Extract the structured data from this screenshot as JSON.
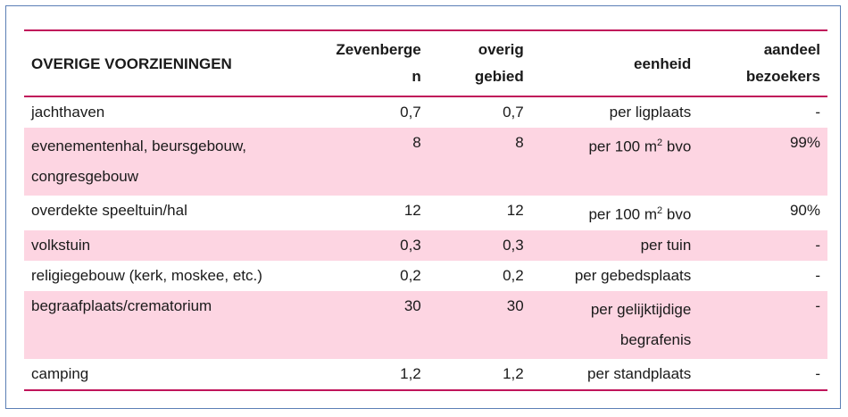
{
  "table": {
    "headers": {
      "col1": "OVERIGE VOORZIENINGEN",
      "col2_line1": "Zevenberge",
      "col2_line2": "n",
      "col3_line1": "overig",
      "col3_line2": "gebied",
      "col4": "eenheid",
      "col5_line1": "aandeel",
      "col5_line2": "bezoekers"
    },
    "rows": [
      {
        "name": "jachthaven",
        "name2": "",
        "zev": "0,7",
        "overig": "0,7",
        "unit": "per ligplaats",
        "unit_sup": "",
        "unit_after": "",
        "unit2": "",
        "share": "-",
        "pink": false
      },
      {
        "name": "evenementenhal, beursgebouw,",
        "name2": "congresgebouw",
        "zev": "8",
        "overig": "8",
        "unit": "per 100 m",
        "unit_sup": "2",
        "unit_after": " bvo",
        "unit2": "",
        "share": "99%",
        "pink": true
      },
      {
        "name": "overdekte speeltuin/hal",
        "name2": "",
        "zev": "12",
        "overig": "12",
        "unit": "per 100 m",
        "unit_sup": "2",
        "unit_after": " bvo",
        "unit2": "",
        "share": "90%",
        "pink": false
      },
      {
        "name": "volkstuin",
        "name2": "",
        "zev": "0,3",
        "overig": "0,3",
        "unit": "per tuin",
        "unit_sup": "",
        "unit_after": "",
        "unit2": "",
        "share": "-",
        "pink": true
      },
      {
        "name": "religiegebouw (kerk, moskee, etc.)",
        "name2": "",
        "zev": "0,2",
        "overig": "0,2",
        "unit": "per gebedsplaats",
        "unit_sup": "",
        "unit_after": "",
        "unit2": "",
        "share": "-",
        "pink": false
      },
      {
        "name": "begraafplaats/crematorium",
        "name2": "",
        "zev": "30",
        "overig": "30",
        "unit": "per gelijktijdige",
        "unit_sup": "",
        "unit_after": "",
        "unit2": "begrafenis",
        "share": "-",
        "pink": true
      },
      {
        "name": "camping",
        "name2": "",
        "zev": "1,2",
        "overig": "1,2",
        "unit": "per standplaats",
        "unit_sup": "",
        "unit_after": "",
        "unit2": "",
        "share": "-",
        "pink": false
      }
    ]
  },
  "colors": {
    "accent_rule": "#c0145a",
    "row_pink": "#fdd5e2",
    "frame_border": "#5b7fb5"
  }
}
